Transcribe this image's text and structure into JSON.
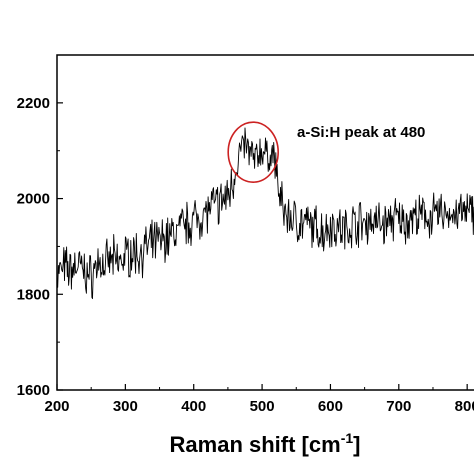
{
  "chart_data": {
    "type": "line",
    "title": "",
    "xlabel": "Raman shift [cm",
    "xlabel_superscript": "-1",
    "xlabel_suffix": "]",
    "ylabel": "",
    "xlim": [
      200,
      810
    ],
    "ylim": [
      1600,
      2300
    ],
    "xticks": [
      200,
      300,
      400,
      500,
      600,
      700,
      800
    ],
    "yticks": [
      1600,
      1800,
      2000,
      2200
    ],
    "grid": false,
    "line_color": "#000000",
    "annotation": {
      "text": "a-Si:H peak at 480",
      "circle_center_x": 487,
      "circle_center_y": 2097,
      "circle_color": "#cc2222"
    },
    "series": [
      {
        "x": [
          200,
          210,
          220,
          230,
          240,
          250,
          260,
          270,
          280,
          290,
          300,
          310,
          320,
          330,
          340,
          350,
          360,
          370,
          380,
          390,
          400,
          410,
          420,
          430,
          440,
          450,
          460,
          465,
          470,
          475,
          480,
          485,
          490,
          495,
          500,
          505,
          510,
          515,
          520,
          525,
          530,
          540,
          550,
          560,
          570,
          580,
          590,
          600,
          610,
          620,
          630,
          640,
          650,
          660,
          670,
          680,
          690,
          700,
          710,
          720,
          730,
          740,
          750,
          760,
          770,
          780,
          790,
          800,
          810
        ],
        "y": [
          1840,
          1855,
          1850,
          1862,
          1848,
          1835,
          1868,
          1858,
          1872,
          1866,
          1880,
          1888,
          1884,
          1896,
          1904,
          1912,
          1918,
          1926,
          1938,
          1946,
          1956,
          1964,
          1974,
          1986,
          1992,
          2006,
          2052,
          2085,
          2105,
          2115,
          2098,
          2092,
          2080,
          2095,
          2102,
          2090,
          2088,
          2096,
          2070,
          2010,
          1978,
          1960,
          1955,
          1948,
          1942,
          1938,
          1932,
          1946,
          1940,
          1935,
          1944,
          1952,
          1948,
          1955,
          1950,
          1945,
          1958,
          1955,
          1950,
          1962,
          1958,
          1965,
          1960,
          1968,
          1972,
          1965,
          1970,
          1968,
          1975
        ]
      }
    ]
  }
}
